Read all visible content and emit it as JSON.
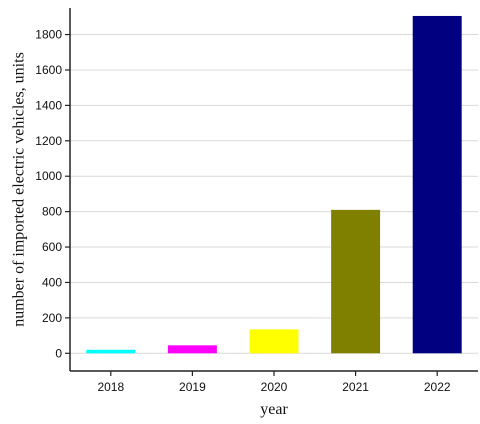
{
  "chart_data": {
    "type": "bar",
    "title": "",
    "xlabel": "year",
    "ylabel": "number of imported electric vehicles, units",
    "categories": [
      "2018",
      "2019",
      "2020",
      "2021",
      "2022"
    ],
    "values": [
      20,
      45,
      135,
      810,
      1905
    ],
    "bar_colors": [
      "#00FFFF",
      "#FF00FF",
      "#FFFF00",
      "#808000",
      "#000080"
    ],
    "ylim": [
      -100,
      1950
    ],
    "yticks": [
      0,
      200,
      400,
      600,
      800,
      1000,
      1200,
      1400,
      1600,
      1800
    ],
    "grid": true,
    "legend": "none"
  }
}
